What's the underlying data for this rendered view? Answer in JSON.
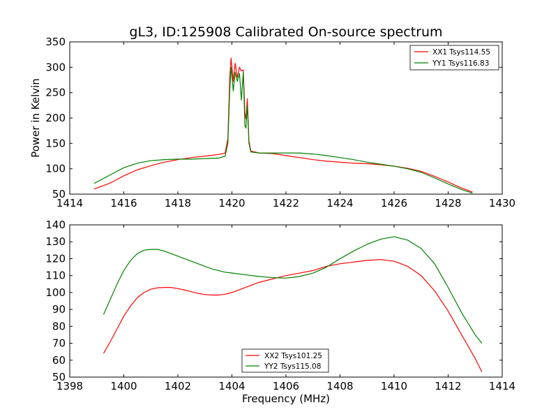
{
  "chart_data": [
    {
      "type": "line",
      "title": "gL3, ID:125908 Calibrated On-source spectrum",
      "xlabel": "",
      "ylabel": "Power in Kelvin",
      "xlim": [
        1414,
        1430
      ],
      "ylim": [
        50,
        350
      ],
      "xticks": [
        "1414",
        "1416",
        "1418",
        "1420",
        "1422",
        "1424",
        "1426",
        "1428",
        "1430"
      ],
      "yticks": [
        "50",
        "100",
        "150",
        "200",
        "250",
        "300",
        "350"
      ],
      "grid": false,
      "legend_position": "top-right",
      "series": [
        {
          "name": "XX1 Tsys114.55",
          "color": "#ff0000",
          "points": [
            [
              1414.9,
              60
            ],
            [
              1415.5,
              72
            ],
            [
              1416.0,
              86
            ],
            [
              1416.5,
              98
            ],
            [
              1417.0,
              106
            ],
            [
              1417.5,
              113
            ],
            [
              1418.0,
              118
            ],
            [
              1418.5,
              122
            ],
            [
              1419.0,
              125
            ],
            [
              1419.5,
              128
            ],
            [
              1419.75,
              131
            ],
            [
              1419.85,
              160
            ],
            [
              1419.92,
              280
            ],
            [
              1419.97,
              318
            ],
            [
              1420.05,
              272
            ],
            [
              1420.12,
              308
            ],
            [
              1420.2,
              280
            ],
            [
              1420.28,
              300
            ],
            [
              1420.35,
              293
            ],
            [
              1420.42,
              295
            ],
            [
              1420.48,
              210
            ],
            [
              1420.52,
              198
            ],
            [
              1420.57,
              238
            ],
            [
              1420.63,
              155
            ],
            [
              1420.7,
              135
            ],
            [
              1421.0,
              131
            ],
            [
              1421.5,
              130
            ],
            [
              1422.0,
              126
            ],
            [
              1422.5,
              122
            ],
            [
              1423.0,
              118
            ],
            [
              1423.5,
              115
            ],
            [
              1424.0,
              113
            ],
            [
              1424.5,
              111
            ],
            [
              1425.0,
              110
            ],
            [
              1425.5,
              108
            ],
            [
              1426.0,
              105
            ],
            [
              1426.5,
              101
            ],
            [
              1427.0,
              95
            ],
            [
              1427.5,
              85
            ],
            [
              1428.0,
              74
            ],
            [
              1428.5,
              62
            ],
            [
              1428.9,
              54
            ]
          ]
        },
        {
          "name": "YY1 Tsys116.83",
          "color": "#008000",
          "points": [
            [
              1414.9,
              71
            ],
            [
              1415.5,
              88
            ],
            [
              1416.0,
              102
            ],
            [
              1416.5,
              111
            ],
            [
              1417.0,
              116
            ],
            [
              1417.5,
              118
            ],
            [
              1418.0,
              119
            ],
            [
              1418.5,
              119
            ],
            [
              1419.0,
              120
            ],
            [
              1419.5,
              121
            ],
            [
              1419.75,
              125
            ],
            [
              1419.85,
              150
            ],
            [
              1419.92,
              255
            ],
            [
              1419.97,
              300
            ],
            [
              1420.05,
              253
            ],
            [
              1420.12,
              290
            ],
            [
              1420.2,
              272
            ],
            [
              1420.28,
              288
            ],
            [
              1420.35,
              235
            ],
            [
              1420.42,
              290
            ],
            [
              1420.48,
              185
            ],
            [
              1420.52,
              180
            ],
            [
              1420.57,
              225
            ],
            [
              1420.63,
              150
            ],
            [
              1420.7,
              133
            ],
            [
              1421.0,
              131
            ],
            [
              1421.5,
              131
            ],
            [
              1422.0,
              131
            ],
            [
              1422.5,
              131
            ],
            [
              1423.0,
              129
            ],
            [
              1423.5,
              126
            ],
            [
              1424.0,
              122
            ],
            [
              1424.5,
              118
            ],
            [
              1425.0,
              113
            ],
            [
              1425.5,
              109
            ],
            [
              1426.0,
              105
            ],
            [
              1426.5,
              100
            ],
            [
              1427.0,
              93
            ],
            [
              1427.5,
              82
            ],
            [
              1428.0,
              70
            ],
            [
              1428.5,
              59
            ],
            [
              1428.9,
              52
            ]
          ]
        }
      ]
    },
    {
      "type": "line",
      "title": "",
      "xlabel": "Frequency (MHz)",
      "ylabel": "",
      "xlim": [
        1398,
        1414
      ],
      "ylim": [
        50,
        140
      ],
      "xticks": [
        "1398",
        "1400",
        "1402",
        "1404",
        "1406",
        "1408",
        "1410",
        "1412",
        "1414"
      ],
      "yticks": [
        "50",
        "60",
        "70",
        "80",
        "90",
        "100",
        "110",
        "120",
        "130",
        "140"
      ],
      "grid": false,
      "legend_position": "bottom-center",
      "series": [
        {
          "name": "XX2 Tsys101.25",
          "color": "#ff0000",
          "points": [
            [
              1399.25,
              64
            ],
            [
              1399.5,
              71
            ],
            [
              1399.75,
              78.5
            ],
            [
              1400.0,
              86
            ],
            [
              1400.25,
              92
            ],
            [
              1400.5,
              97
            ],
            [
              1400.75,
              100
            ],
            [
              1401.0,
              102
            ],
            [
              1401.25,
              102.8
            ],
            [
              1401.5,
              103
            ],
            [
              1401.75,
              103
            ],
            [
              1402.0,
              102.3
            ],
            [
              1402.25,
              101.5
            ],
            [
              1402.5,
              100.5
            ],
            [
              1402.75,
              99.5
            ],
            [
              1403.0,
              98.8
            ],
            [
              1403.25,
              98.5
            ],
            [
              1403.5,
              98.5
            ],
            [
              1403.75,
              99
            ],
            [
              1404.0,
              100
            ],
            [
              1404.25,
              101.5
            ],
            [
              1404.5,
              103
            ],
            [
              1404.75,
              104.5
            ],
            [
              1405.0,
              106
            ],
            [
              1405.25,
              107
            ],
            [
              1405.5,
              108
            ],
            [
              1405.75,
              109
            ],
            [
              1406.0,
              110
            ],
            [
              1406.5,
              111.5
            ],
            [
              1407.0,
              113
            ],
            [
              1407.5,
              115.5
            ],
            [
              1408.0,
              117
            ],
            [
              1408.5,
              118
            ],
            [
              1409.0,
              119
            ],
            [
              1409.5,
              119.5
            ],
            [
              1410.0,
              118.5
            ],
            [
              1410.5,
              115.5
            ],
            [
              1411.0,
              110
            ],
            [
              1411.5,
              101
            ],
            [
              1412.0,
              89
            ],
            [
              1412.5,
              75
            ],
            [
              1413.0,
              61
            ],
            [
              1413.25,
              53
            ]
          ]
        },
        {
          "name": "YY2 Tsys115.08",
          "color": "#008000",
          "points": [
            [
              1399.25,
              87
            ],
            [
              1399.5,
              96
            ],
            [
              1399.75,
              105
            ],
            [
              1400.0,
              113
            ],
            [
              1400.25,
              119
            ],
            [
              1400.5,
              123
            ],
            [
              1400.75,
              125
            ],
            [
              1401.0,
              125.5
            ],
            [
              1401.25,
              125.5
            ],
            [
              1401.5,
              124.5
            ],
            [
              1401.75,
              123
            ],
            [
              1402.0,
              121.5
            ],
            [
              1402.25,
              120
            ],
            [
              1402.5,
              118.5
            ],
            [
              1402.75,
              117
            ],
            [
              1403.0,
              115.5
            ],
            [
              1403.25,
              114
            ],
            [
              1403.5,
              113
            ],
            [
              1403.75,
              112
            ],
            [
              1404.0,
              111.5
            ],
            [
              1404.5,
              110.5
            ],
            [
              1405.0,
              109.5
            ],
            [
              1405.5,
              108.8
            ],
            [
              1406.0,
              108.5
            ],
            [
              1406.5,
              109.5
            ],
            [
              1407.0,
              111.5
            ],
            [
              1407.5,
              115
            ],
            [
              1408.0,
              120
            ],
            [
              1408.5,
              124.5
            ],
            [
              1409.0,
              128.5
            ],
            [
              1409.5,
              131.5
            ],
            [
              1410.0,
              133
            ],
            [
              1410.5,
              131
            ],
            [
              1411.0,
              126
            ],
            [
              1411.5,
              117
            ],
            [
              1412.0,
              103
            ],
            [
              1412.5,
              88
            ],
            [
              1413.0,
              75
            ],
            [
              1413.25,
              70
            ]
          ]
        }
      ]
    }
  ]
}
